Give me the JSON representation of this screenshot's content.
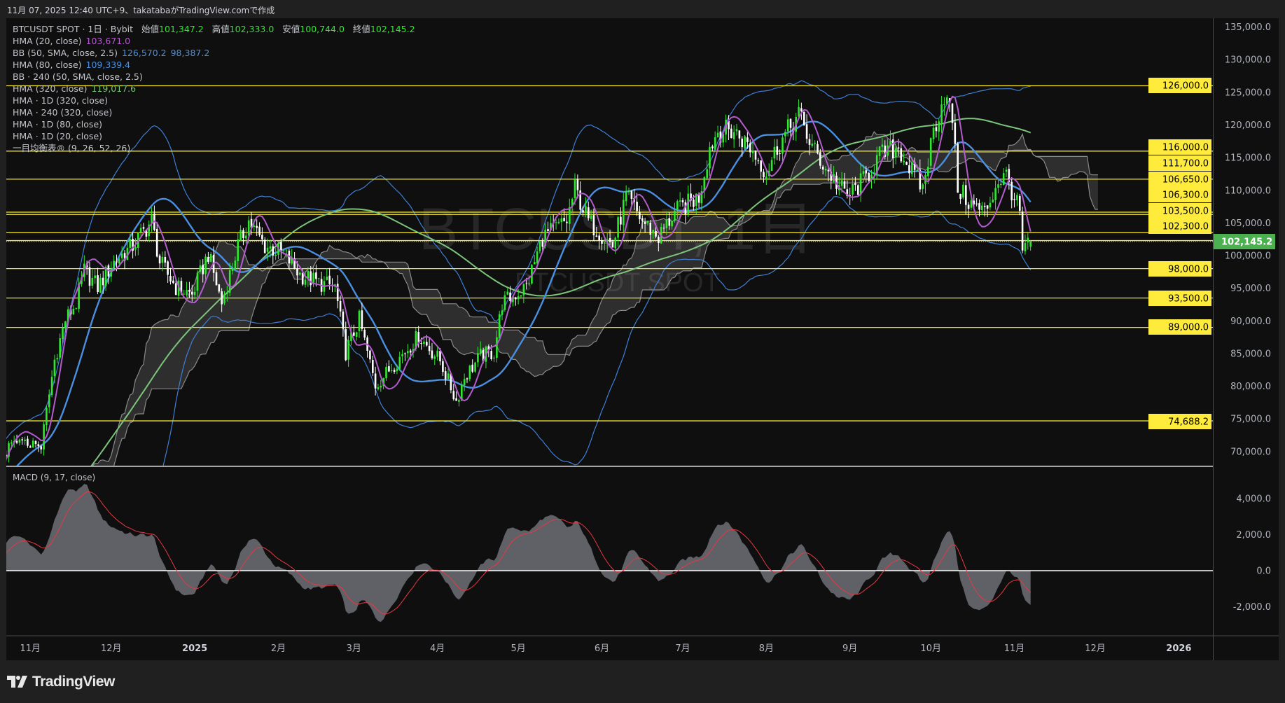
{
  "header": {
    "caption": "11月 07, 2025 12:40 UTC+9、takatabaがTradingView.comで作成"
  },
  "legend": {
    "symbol": "BTCUSDT SPOT · 1日 · Bybit",
    "open_label": "始値",
    "open": "101,347.2",
    "high_label": "高値",
    "high": "102,333.0",
    "low_label": "安値",
    "low": "100,744.0",
    "close_label": "終値",
    "close": "102,145.2",
    "indicators": [
      {
        "label": "HMA (20, close)",
        "value": "103,671.0",
        "color": "#b35ccc"
      },
      {
        "label": "BB (50, SMA, close, 2.5)",
        "value": "126,570.2",
        "value2": "98,387.2",
        "color": "#4a8fe0"
      },
      {
        "label": "HMA (80, close)",
        "value": "109,339.4",
        "color": "#4a8fe0"
      },
      {
        "label": "BB · 240 (50, SMA, close, 2.5)"
      },
      {
        "label": "HMA (320, close)",
        "value": "119,017.6",
        "color": "#7cc47c"
      },
      {
        "label": "HMA · 1D (320, close)"
      },
      {
        "label": "HMA · 240 (320, close)"
      },
      {
        "label": "HMA · 1D (80, close)"
      },
      {
        "label": "HMA · 1D (20, close)"
      },
      {
        "label": "一目均衡表® (9, 26, 52, 26)"
      }
    ]
  },
  "watermark": {
    "title": "BTCUSDT, 1日",
    "subtitle": "BTCUSDT SPOT"
  },
  "price_axis": {
    "ticks": [
      "135,000.0",
      "130,000.0",
      "125,000.0",
      "120,000.0",
      "115,000.0",
      "110,000.0",
      "105,000.0",
      "100,000.0",
      "95,000.0",
      "90,000.0",
      "85,000.0",
      "80,000.0",
      "75,000.0",
      "70,000.0"
    ],
    "levels": [
      {
        "value": 126000,
        "label": "126,000.0"
      },
      {
        "value": 116000,
        "label": "116,000.0"
      },
      {
        "value": 111700,
        "label": "111,700.0"
      },
      {
        "value": 106650,
        "label": "106,650.0"
      },
      {
        "value": 106300,
        "label": "106,300.0"
      },
      {
        "value": 103500,
        "label": "103,500.0"
      },
      {
        "value": 102300,
        "label": "102,300.0"
      },
      {
        "value": 98000,
        "label": "98,000.0"
      },
      {
        "value": 93500,
        "label": "93,500.0"
      },
      {
        "value": 89000,
        "label": "89,000.0"
      },
      {
        "value": 74688.2,
        "label": "74,688.2"
      }
    ],
    "last_price": {
      "value": 102145.2,
      "label": "102,145.2"
    }
  },
  "macd": {
    "label": "MACD (9, 17, close)",
    "ticks": [
      "4,000.0",
      "2,000.0",
      "0.0",
      "-2,000.0"
    ]
  },
  "time_axis": {
    "labels": [
      {
        "text": "11月",
        "date": "2024-11-01"
      },
      {
        "text": "12月",
        "date": "2024-12-01"
      },
      {
        "text": "2025",
        "date": "2025-01-01",
        "bold": true
      },
      {
        "text": "2月",
        "date": "2025-02-01"
      },
      {
        "text": "3月",
        "date": "2025-03-01"
      },
      {
        "text": "4月",
        "date": "2025-04-01"
      },
      {
        "text": "5月",
        "date": "2025-05-01"
      },
      {
        "text": "6月",
        "date": "2025-06-01"
      },
      {
        "text": "7月",
        "date": "2025-07-01"
      },
      {
        "text": "8月",
        "date": "2025-08-01"
      },
      {
        "text": "9月",
        "date": "2025-09-01"
      },
      {
        "text": "10月",
        "date": "2025-10-01"
      },
      {
        "text": "11月",
        "date": "2025-11-01"
      },
      {
        "text": "12月",
        "date": "2025-12-01"
      },
      {
        "text": "2026",
        "date": "2026-01-01",
        "bold": true
      }
    ]
  },
  "branding": {
    "name": "TradingView"
  },
  "colors": {
    "up": "#2ee82e",
    "down": "#ffffff",
    "level": "#f5e625",
    "level_label_bg": "#ffeb3b",
    "last_price_bg": "#4caf50",
    "hma20": "#b35ccc",
    "hma80": "#4a8fe0",
    "hma320": "#7cc47c",
    "bb": "#3f7fd6",
    "macd_fill": "#5f6166",
    "macd_signal": "#e53945"
  },
  "chart_data": {
    "type": "candlestick",
    "interval": "1D",
    "ylim": [
      67000,
      136000
    ],
    "macd_ylim": [
      -3000,
      5000
    ],
    "grid": false,
    "close_anchors": [
      [
        "2024-10-24",
        70500
      ],
      [
        "2024-10-30",
        71500
      ],
      [
        "2024-11-05",
        70800
      ],
      [
        "2024-11-10",
        84000
      ],
      [
        "2024-11-14",
        90200
      ],
      [
        "2024-11-18",
        92700
      ],
      [
        "2024-11-21",
        97700
      ],
      [
        "2024-11-26",
        95200
      ],
      [
        "2024-12-02",
        99000
      ],
      [
        "2024-12-09",
        101500
      ],
      [
        "2024-12-16",
        105300
      ],
      [
        "2024-12-19",
        99000
      ],
      [
        "2024-12-25",
        95200
      ],
      [
        "2024-12-31",
        94000
      ],
      [
        "2025-01-06",
        100300
      ],
      [
        "2025-01-11",
        92700
      ],
      [
        "2025-01-17",
        101500
      ],
      [
        "2025-01-21",
        105300
      ],
      [
        "2025-01-27",
        101500
      ],
      [
        "2025-02-03",
        100300
      ],
      [
        "2025-02-09",
        97100
      ],
      [
        "2025-02-16",
        95800
      ],
      [
        "2025-02-22",
        95200
      ],
      [
        "2025-02-26",
        85200
      ],
      [
        "2025-03-03",
        90200
      ],
      [
        "2025-03-09",
        80100
      ],
      [
        "2025-03-17",
        83900
      ],
      [
        "2025-03-25",
        87700
      ],
      [
        "2025-04-02",
        83900
      ],
      [
        "2025-04-08",
        77700
      ],
      [
        "2025-04-11",
        81400
      ],
      [
        "2025-04-17",
        84600
      ],
      [
        "2025-04-22",
        85200
      ],
      [
        "2025-04-25",
        92700
      ],
      [
        "2025-05-04",
        95200
      ],
      [
        "2025-05-10",
        102800
      ],
      [
        "2025-05-19",
        105300
      ],
      [
        "2025-05-22",
        110300
      ],
      [
        "2025-05-27",
        105300
      ],
      [
        "2025-06-05",
        101500
      ],
      [
        "2025-06-10",
        109000
      ],
      [
        "2025-06-16",
        105300
      ],
      [
        "2025-06-22",
        102800
      ],
      [
        "2025-06-28",
        106600
      ],
      [
        "2025-07-07",
        109000
      ],
      [
        "2025-07-11",
        116600
      ],
      [
        "2025-07-14",
        119100
      ],
      [
        "2025-07-20",
        119100
      ],
      [
        "2025-07-26",
        116600
      ],
      [
        "2025-08-01",
        112800
      ],
      [
        "2025-08-05",
        116600
      ],
      [
        "2025-08-13",
        121600
      ],
      [
        "2025-08-18",
        116600
      ],
      [
        "2025-08-24",
        112800
      ],
      [
        "2025-08-31",
        109000
      ],
      [
        "2025-09-06",
        111500
      ],
      [
        "2025-09-12",
        115300
      ],
      [
        "2025-09-19",
        116600
      ],
      [
        "2025-09-24",
        112800
      ],
      [
        "2025-09-28",
        110300
      ],
      [
        "2025-10-02",
        119100
      ],
      [
        "2025-10-06",
        124700
      ],
      [
        "2025-10-09",
        121000
      ],
      [
        "2025-10-11",
        110300
      ],
      [
        "2025-10-16",
        107800
      ],
      [
        "2025-10-21",
        106600
      ],
      [
        "2025-10-26",
        111500
      ],
      [
        "2025-10-29",
        112200
      ],
      [
        "2025-11-03",
        106600
      ],
      [
        "2025-11-04",
        100300
      ],
      [
        "2025-11-07",
        102145.2
      ]
    ],
    "last_bar": {
      "date": "2025-11-07",
      "open": 101347.2,
      "high": 102333.0,
      "low": 100744.0,
      "close": 102145.2
    }
  }
}
